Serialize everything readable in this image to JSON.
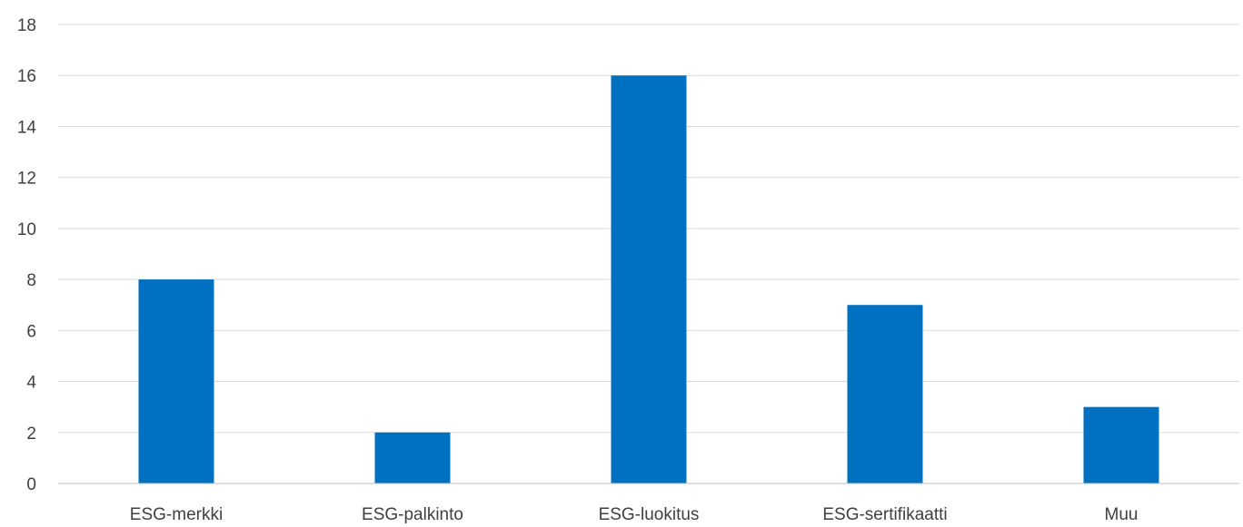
{
  "chart_data": {
    "type": "bar",
    "categories": [
      "ESG-merkki",
      "ESG-palkinto",
      "ESG-luokitus",
      "ESG-sertifikaatti",
      "Muu"
    ],
    "values": [
      8,
      2,
      16,
      7,
      3
    ],
    "title": "",
    "xlabel": "",
    "ylabel": "",
    "ylim": [
      0,
      18
    ],
    "yticks": [
      0,
      2,
      4,
      6,
      8,
      10,
      12,
      14,
      16,
      18
    ],
    "ytick_labels": [
      "0",
      "2",
      "4",
      "6",
      "8",
      "10",
      "12",
      "14",
      "16",
      "18"
    ],
    "grid": true,
    "legend": "none",
    "bar_color": "#0070c0"
  }
}
